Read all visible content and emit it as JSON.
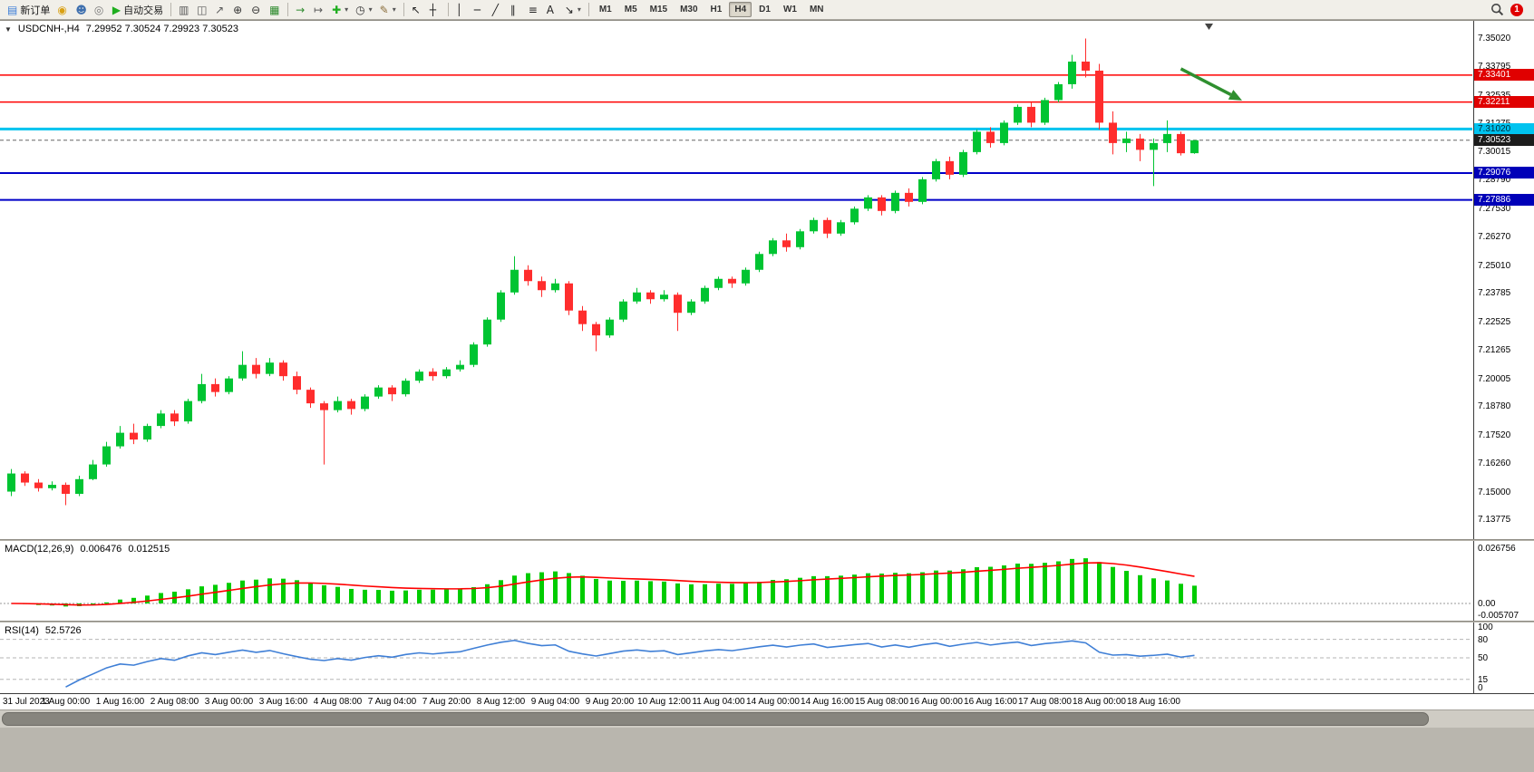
{
  "toolbar": {
    "items": [
      {
        "id": "new-order",
        "glyph": "▤",
        "color": "#3b7dd8",
        "label": "新订单"
      },
      {
        "id": "chart-profiles",
        "glyph": "◉",
        "color": "#d9a013"
      },
      {
        "id": "market-watch",
        "glyph": "☻",
        "color": "#3e6fae"
      },
      {
        "id": "mql5-community",
        "glyph": "◎",
        "color": "#777777"
      },
      {
        "id": "autotrading",
        "glyph": "▶",
        "color": "#1fae1f",
        "label": "自动交易"
      },
      {
        "sep": true
      },
      {
        "id": "bar-chart-mode",
        "glyph": "▥",
        "color": "#5a5a5a"
      },
      {
        "id": "candlestick-mode",
        "glyph": "◫",
        "color": "#5a5a5a"
      },
      {
        "id": "line-chart-mode",
        "glyph": "↗",
        "color": "#5a5a5a"
      },
      {
        "id": "zoom-in",
        "glyph": "⊕",
        "color": "#333333"
      },
      {
        "id": "zoom-out",
        "glyph": "⊖",
        "color": "#333333"
      },
      {
        "id": "tile-windows",
        "glyph": "▦",
        "color": "#2e8b2e"
      },
      {
        "sep": true
      },
      {
        "id": "auto-scroll",
        "glyph": "→",
        "color": "#2e8b2e"
      },
      {
        "id": "chart-shift",
        "glyph": "↦",
        "color": "#5a5a5a"
      },
      {
        "id": "indicators",
        "glyph": "✚",
        "color": "#1fae1f",
        "dropdown": true
      },
      {
        "id": "periods",
        "glyph": "◷",
        "color": "#333333",
        "dropdown": true
      },
      {
        "id": "templates",
        "glyph": "✎",
        "color": "#8a6d3b",
        "dropdown": true
      },
      {
        "sep": true
      },
      {
        "id": "cursor",
        "glyph": "↖",
        "color": "#222222"
      },
      {
        "id": "crosshair",
        "glyph": "┼",
        "color": "#222222"
      },
      {
        "sep": true
      },
      {
        "id": "vertical-line",
        "glyph": "│",
        "color": "#222222"
      },
      {
        "id": "horizontal-line",
        "glyph": "─",
        "color": "#222222"
      },
      {
        "id": "trendline",
        "glyph": "╱",
        "color": "#222222"
      },
      {
        "id": "equidistant-channel",
        "glyph": "∥",
        "color": "#222222"
      },
      {
        "id": "fibonacci",
        "glyph": "≡",
        "color": "#222222"
      },
      {
        "id": "text",
        "glyph": "A",
        "color": "#222222"
      },
      {
        "id": "arrows",
        "glyph": "↘",
        "color": "#222222",
        "dropdown": true
      },
      {
        "sep": true
      }
    ],
    "timeframes": [
      "M1",
      "M5",
      "M15",
      "M30",
      "H1",
      "H4",
      "D1",
      "W1",
      "MN"
    ],
    "active_timeframe": "H4",
    "notification_count": "1"
  },
  "chart": {
    "header_symbol": "USDCNH-,H4",
    "header_ohlc": "7.29952 7.30524 7.29923 7.30523"
  },
  "chart_data": {
    "type": "candlestick",
    "symbol": "USDCNH-",
    "timeframe": "H4",
    "current_ohlc": {
      "open": "7.29952",
      "high": "7.30524",
      "low": "7.29923",
      "close": "7.30523"
    },
    "y_axis": {
      "min": 7.129,
      "max": 7.358,
      "ticks": [
        "7.35020",
        "7.33795",
        "7.32535",
        "7.31275",
        "7.30015",
        "7.28790",
        "7.27530",
        "7.26270",
        "7.25010",
        "7.23785",
        "7.22525",
        "7.21265",
        "7.20005",
        "7.18780",
        "7.17520",
        "7.16260",
        "7.15000",
        "7.13775"
      ]
    },
    "x_labels": [
      "31 Jul 2023",
      "1 Aug 00:00",
      "1 Aug 16:00",
      "2 Aug 08:00",
      "3 Aug 00:00",
      "3 Aug 16:00",
      "4 Aug 08:00",
      "7 Aug 04:00",
      "7 Aug 20:00",
      "8 Aug 12:00",
      "9 Aug 04:00",
      "9 Aug 20:00",
      "10 Aug 12:00",
      "11 Aug 04:00",
      "14 Aug 00:00",
      "14 Aug 16:00",
      "15 Aug 08:00",
      "16 Aug 00:00",
      "16 Aug 16:00",
      "17 Aug 08:00",
      "18 Aug 00:00",
      "18 Aug 16:00"
    ],
    "candles": [
      [
        7.15,
        7.16,
        7.148,
        7.158
      ],
      [
        7.158,
        7.159,
        7.1525,
        7.154
      ],
      [
        7.154,
        7.1555,
        7.15,
        7.1515
      ],
      [
        7.1515,
        7.1545,
        7.1505,
        7.153
      ],
      [
        7.153,
        7.154,
        7.144,
        7.149
      ],
      [
        7.149,
        7.157,
        7.148,
        7.1555
      ],
      [
        7.1555,
        7.164,
        7.155,
        7.162
      ],
      [
        7.162,
        7.172,
        7.161,
        7.17
      ],
      [
        7.17,
        7.179,
        7.169,
        7.176
      ],
      [
        7.176,
        7.18,
        7.171,
        7.173
      ],
      [
        7.173,
        7.18,
        7.172,
        7.179
      ],
      [
        7.179,
        7.186,
        7.178,
        7.1845
      ],
      [
        7.1845,
        7.186,
        7.179,
        7.181
      ],
      [
        7.181,
        7.191,
        7.18,
        7.19
      ],
      [
        7.19,
        7.202,
        7.189,
        7.1975
      ],
      [
        7.1975,
        7.2,
        7.192,
        7.194
      ],
      [
        7.194,
        7.201,
        7.193,
        7.2
      ],
      [
        7.2,
        7.212,
        7.199,
        7.206
      ],
      [
        7.206,
        7.209,
        7.2,
        7.202
      ],
      [
        7.202,
        7.209,
        7.201,
        7.207
      ],
      [
        7.207,
        7.208,
        7.199,
        7.201
      ],
      [
        7.201,
        7.203,
        7.193,
        7.195
      ],
      [
        7.195,
        7.196,
        7.187,
        7.189
      ],
      [
        7.189,
        7.19,
        7.162,
        7.186
      ],
      [
        7.186,
        7.192,
        7.185,
        7.19
      ],
      [
        7.19,
        7.191,
        7.184,
        7.1865
      ],
      [
        7.1865,
        7.193,
        7.1855,
        7.192
      ],
      [
        7.192,
        7.197,
        7.191,
        7.196
      ],
      [
        7.196,
        7.197,
        7.19,
        7.193
      ],
      [
        7.193,
        7.2,
        7.192,
        7.199
      ],
      [
        7.199,
        7.204,
        7.198,
        7.203
      ],
      [
        7.203,
        7.2045,
        7.199,
        7.201
      ],
      [
        7.201,
        7.205,
        7.2,
        7.204
      ],
      [
        7.204,
        7.208,
        7.203,
        7.206
      ],
      [
        7.206,
        7.216,
        7.205,
        7.215
      ],
      [
        7.215,
        7.227,
        7.214,
        7.226
      ],
      [
        7.226,
        7.239,
        7.225,
        7.238
      ],
      [
        7.238,
        7.254,
        7.237,
        7.248
      ],
      [
        7.248,
        7.25,
        7.241,
        7.243
      ],
      [
        7.243,
        7.245,
        7.236,
        7.239
      ],
      [
        7.239,
        7.244,
        7.238,
        7.242
      ],
      [
        7.242,
        7.243,
        7.228,
        7.23
      ],
      [
        7.23,
        7.232,
        7.221,
        7.224
      ],
      [
        7.224,
        7.225,
        7.212,
        7.219
      ],
      [
        7.219,
        7.227,
        7.218,
        7.226
      ],
      [
        7.226,
        7.235,
        7.225,
        7.234
      ],
      [
        7.234,
        7.24,
        7.233,
        7.238
      ],
      [
        7.238,
        7.239,
        7.233,
        7.235
      ],
      [
        7.235,
        7.239,
        7.234,
        7.237
      ],
      [
        7.237,
        7.238,
        7.221,
        7.229
      ],
      [
        7.229,
        7.235,
        7.228,
        7.234
      ],
      [
        7.234,
        7.241,
        7.233,
        7.24
      ],
      [
        7.24,
        7.245,
        7.239,
        7.244
      ],
      [
        7.244,
        7.245,
        7.24,
        7.242
      ],
      [
        7.242,
        7.249,
        7.241,
        7.248
      ],
      [
        7.248,
        7.256,
        7.247,
        7.255
      ],
      [
        7.255,
        7.262,
        7.254,
        7.261
      ],
      [
        7.261,
        7.264,
        7.256,
        7.258
      ],
      [
        7.258,
        7.266,
        7.257,
        7.265
      ],
      [
        7.265,
        7.271,
        7.264,
        7.27
      ],
      [
        7.27,
        7.271,
        7.262,
        7.264
      ],
      [
        7.264,
        7.27,
        7.263,
        7.269
      ],
      [
        7.269,
        7.276,
        7.268,
        7.275
      ],
      [
        7.275,
        7.281,
        7.274,
        7.28
      ],
      [
        7.28,
        7.281,
        7.272,
        7.274
      ],
      [
        7.274,
        7.283,
        7.273,
        7.282
      ],
      [
        7.282,
        7.284,
        7.276,
        7.278
      ],
      [
        7.278,
        7.289,
        7.277,
        7.288
      ],
      [
        7.288,
        7.297,
        7.287,
        7.296
      ],
      [
        7.296,
        7.298,
        7.288,
        7.29
      ],
      [
        7.29,
        7.301,
        7.289,
        7.3
      ],
      [
        7.3,
        7.31,
        7.299,
        7.309
      ],
      [
        7.309,
        7.311,
        7.302,
        7.304
      ],
      [
        7.304,
        7.314,
        7.303,
        7.313
      ],
      [
        7.313,
        7.321,
        7.312,
        7.32
      ],
      [
        7.32,
        7.322,
        7.311,
        7.313
      ],
      [
        7.313,
        7.324,
        7.312,
        7.323
      ],
      [
        7.323,
        7.331,
        7.322,
        7.33
      ],
      [
        7.33,
        7.343,
        7.328,
        7.34
      ],
      [
        7.34,
        7.3502,
        7.333,
        7.336
      ],
      [
        7.336,
        7.339,
        7.31,
        7.313
      ],
      [
        7.313,
        7.318,
        7.299,
        7.304
      ],
      [
        7.304,
        7.309,
        7.3,
        7.306
      ],
      [
        7.306,
        7.308,
        7.296,
        7.301
      ],
      [
        7.301,
        7.306,
        7.285,
        7.304
      ],
      [
        7.304,
        7.314,
        7.3,
        7.308
      ],
      [
        7.308,
        7.309,
        7.2985,
        7.2995
      ],
      [
        7.29952,
        7.30524,
        7.29923,
        7.30523
      ]
    ],
    "hlines": [
      {
        "price": 7.33401,
        "label": "7.33401",
        "color": "#ff0000",
        "width": 1.5,
        "label_bg": "#e00000",
        "label_color": "#ffffff"
      },
      {
        "price": 7.32211,
        "label": "7.32211",
        "color": "#ff0000",
        "width": 1.5,
        "label_bg": "#e00000",
        "label_color": "#ffffff"
      },
      {
        "price": 7.3102,
        "label": "7.31020",
        "color": "#00c3ef",
        "width": 3,
        "label_bg": "#00c3ef",
        "label_color": "#002733"
      },
      {
        "price": 7.30523,
        "label": "7.30523",
        "color": "#666666",
        "width": 1,
        "dash": "4,3",
        "label_bg": "#1c1c1c",
        "label_color": "#ffffff",
        "role": "bid"
      },
      {
        "price": 7.29076,
        "label": "7.29076",
        "color": "#0000c8",
        "width": 2,
        "label_bg": "#0000b8",
        "label_color": "#ffffff"
      },
      {
        "price": 7.27886,
        "label": "7.27886",
        "color": "#0000c8",
        "width": 2,
        "label_bg": "#0000b8",
        "label_color": "#ffffff"
      }
    ],
    "arrow": {
      "from_index": 86,
      "from_price": 7.3368,
      "to_index": 90.5,
      "to_price": 7.3228,
      "color": "#2f8f2f"
    },
    "macd": {
      "label": "MACD(12,26,9)",
      "value_main": "0.006476",
      "value_signal": "0.012515",
      "params": [
        12,
        26,
        9
      ],
      "axis_ticks": [
        "0.026756",
        "0.00",
        "-0.005707"
      ]
    },
    "rsi": {
      "label": "RSI(14)",
      "value": "52.5726",
      "period": 14,
      "axis_ticks": [
        "100",
        "80",
        "50",
        "15",
        "0"
      ],
      "levels": [
        80,
        50,
        15
      ]
    }
  },
  "colors": {
    "candle_up": "#00c432",
    "candle_down": "#ff2d2d",
    "macd_hist": "#00cc00",
    "macd_signal": "#ff0000",
    "rsi_line": "#3f7fd6",
    "arrow_green": "#2f8f2f",
    "notification": "#e00000"
  }
}
